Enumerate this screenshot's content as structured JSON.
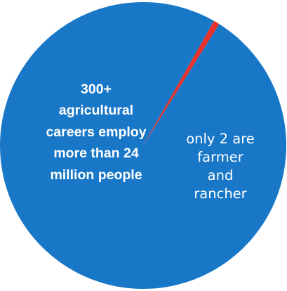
{
  "chart_data": {
    "type": "pie",
    "slices": [
      {
        "value": 300,
        "label": "300+ agricultural careers employ more than 24 million people",
        "color": "#1877c6"
      },
      {
        "value": 2,
        "label": "only 2 are farmer and rancher",
        "color": "#e8312a"
      }
    ],
    "labels": {
      "majority": [
        "300+",
        "agricultural",
        "careers employ",
        "more than 24",
        "million people"
      ],
      "minority": [
        "only 2 are",
        "farmer",
        "and",
        "rancher"
      ]
    },
    "colors": {
      "majority_slice": "#1877c6",
      "minority_slice": "#e8312a",
      "label_text": "#ffffff",
      "background": "#ffffff"
    }
  }
}
